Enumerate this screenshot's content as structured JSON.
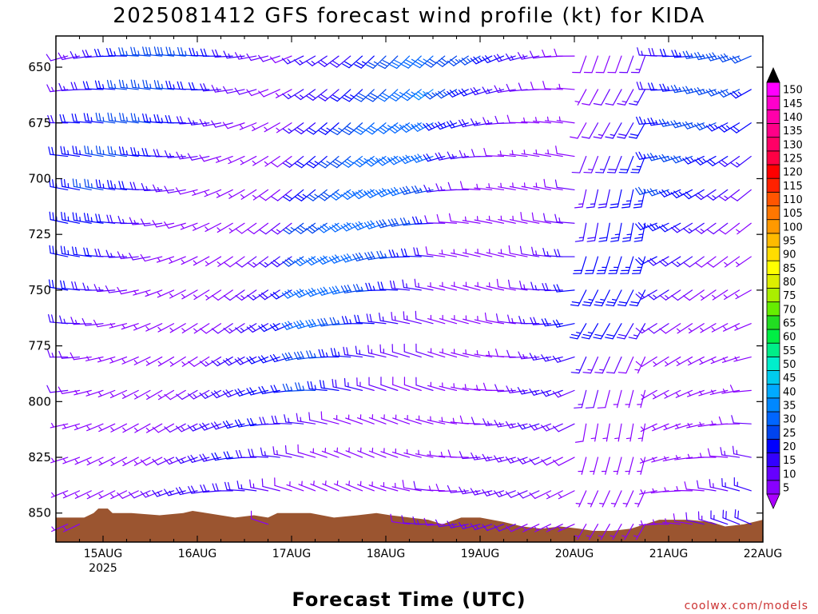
{
  "chart_data": {
    "type": "wind-barb-profile",
    "title": "2025081412 GFS forecast wind profile (kt) for KIDA",
    "xlabel": "Forecast Time (UTC)",
    "credit": "coolwx.com/models",
    "x_ticks": [
      {
        "label": "15AUG",
        "sub": "2025",
        "day": 15
      },
      {
        "label": "16AUG",
        "sub": "",
        "day": 16
      },
      {
        "label": "17AUG",
        "sub": "",
        "day": 17
      },
      {
        "label": "18AUG",
        "sub": "",
        "day": 18
      },
      {
        "label": "19AUG",
        "sub": "",
        "day": 19
      },
      {
        "label": "20AUG",
        "sub": "",
        "day": 20
      },
      {
        "label": "21AUG",
        "sub": "",
        "day": 21
      },
      {
        "label": "22AUG",
        "sub": "",
        "day": 22
      }
    ],
    "x_range_days": [
      14.5,
      22.0
    ],
    "y_ticks": [
      650,
      675,
      700,
      725,
      750,
      775,
      800,
      825,
      850
    ],
    "y_range_hpa": [
      636,
      863
    ],
    "wind_levels_hpa": [
      645,
      660,
      675,
      690,
      705,
      720,
      735,
      750,
      765,
      780,
      795,
      810,
      825,
      840,
      855
    ],
    "time_step_hours": 3,
    "colorbar": {
      "levels": [
        5,
        10,
        15,
        20,
        25,
        30,
        35,
        40,
        45,
        50,
        55,
        60,
        65,
        70,
        75,
        80,
        85,
        90,
        95,
        100,
        105,
        110,
        115,
        120,
        125,
        130,
        135,
        140,
        145,
        150
      ],
      "colors": [
        "#8800ff",
        "#6600ff",
        "#3300ff",
        "#0000ff",
        "#0044ee",
        "#0066ff",
        "#0088ff",
        "#00aaff",
        "#00ccee",
        "#00eecc",
        "#00ee88",
        "#00ee44",
        "#22dd22",
        "#66ee00",
        "#aaee00",
        "#ddee00",
        "#ffff00",
        "#ffdd00",
        "#ffbb00",
        "#ff9900",
        "#ff7700",
        "#ff5500",
        "#ff2200",
        "#ff0000",
        "#ff0044",
        "#ff0066",
        "#ff0088",
        "#ff00aa",
        "#ff00cc",
        "#ff00ff"
      ],
      "tip_low_color": "#aa00ff",
      "tip_high_color": "#000000"
    },
    "terrain_color": "#9b5530",
    "terrain_hpa": [
      [
        14.5,
        852
      ],
      [
        14.8,
        852
      ],
      [
        14.9,
        850
      ],
      [
        14.95,
        848
      ],
      [
        15.05,
        848
      ],
      [
        15.1,
        850
      ],
      [
        15.3,
        850
      ],
      [
        15.6,
        851
      ],
      [
        15.85,
        850
      ],
      [
        15.95,
        849
      ],
      [
        16.1,
        850
      ],
      [
        16.4,
        852
      ],
      [
        16.6,
        851
      ],
      [
        16.75,
        852
      ],
      [
        16.85,
        850
      ],
      [
        17.2,
        850
      ],
      [
        17.45,
        852
      ],
      [
        17.7,
        851
      ],
      [
        17.9,
        850
      ],
      [
        18.05,
        851
      ],
      [
        18.25,
        852
      ],
      [
        18.45,
        853
      ],
      [
        18.6,
        855
      ],
      [
        18.8,
        852
      ],
      [
        19.0,
        852
      ],
      [
        19.25,
        854
      ],
      [
        19.45,
        856
      ],
      [
        19.65,
        857
      ],
      [
        19.85,
        856
      ],
      [
        20.05,
        857
      ],
      [
        20.2,
        858
      ],
      [
        20.4,
        858
      ],
      [
        20.6,
        857
      ],
      [
        20.75,
        855
      ],
      [
        20.9,
        853
      ],
      [
        21.2,
        853
      ],
      [
        21.45,
        854
      ],
      [
        21.6,
        856
      ],
      [
        21.8,
        855
      ],
      [
        22.0,
        853
      ]
    ],
    "wind_field_note": "Wind barbs from GFS model output, mostly westerly/west-southwesterly, speeds roughly 5-35 kt."
  }
}
